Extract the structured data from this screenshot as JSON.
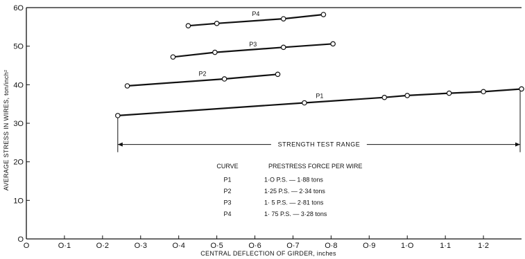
{
  "chart_data": {
    "type": "line",
    "xlabel": "CENTRAL DEFLECTION OF GIRDER, inches",
    "ylabel": "AVERAGE STRESS IN WIRES, ton/inch²",
    "xlim": [
      0,
      1.3
    ],
    "ylim": [
      0,
      60
    ],
    "x_ticks": [
      {
        "value": 0,
        "label": "O"
      },
      {
        "value": 0.1,
        "label": "O·1"
      },
      {
        "value": 0.2,
        "label": "O·2"
      },
      {
        "value": 0.3,
        "label": "O·3"
      },
      {
        "value": 0.4,
        "label": "O·4"
      },
      {
        "value": 0.5,
        "label": "O·5"
      },
      {
        "value": 0.6,
        "label": "O·6"
      },
      {
        "value": 0.7,
        "label": "O·7"
      },
      {
        "value": 0.8,
        "label": "O·8"
      },
      {
        "value": 0.9,
        "label": "O·9"
      },
      {
        "value": 1.0,
        "label": "1·O"
      },
      {
        "value": 1.1,
        "label": "1·1"
      },
      {
        "value": 1.2,
        "label": "1·2"
      }
    ],
    "y_ticks": [
      {
        "value": 0,
        "label": "O"
      },
      {
        "value": 10,
        "label": "1O"
      },
      {
        "value": 20,
        "label": "2O"
      },
      {
        "value": 30,
        "label": "3O"
      },
      {
        "value": 40,
        "label": "4O"
      },
      {
        "value": 50,
        "label": "5O"
      },
      {
        "value": 60,
        "label": "6O"
      }
    ],
    "grid": false,
    "series": [
      {
        "name": "P1",
        "points": [
          [
            0.24,
            32.0
          ],
          [
            0.73,
            35.3
          ],
          [
            0.94,
            36.7
          ],
          [
            1.0,
            37.2
          ],
          [
            1.11,
            37.8
          ],
          [
            1.2,
            38.2
          ],
          [
            1.3,
            38.9
          ]
        ]
      },
      {
        "name": "P2",
        "points": [
          [
            0.265,
            39.7
          ],
          [
            0.52,
            41.5
          ],
          [
            0.66,
            42.7
          ]
        ]
      },
      {
        "name": "P3",
        "points": [
          [
            0.385,
            47.2
          ],
          [
            0.495,
            48.4
          ],
          [
            0.675,
            49.7
          ],
          [
            0.805,
            50.6
          ]
        ]
      },
      {
        "name": "P4",
        "points": [
          [
            0.425,
            55.3
          ],
          [
            0.5,
            55.9
          ],
          [
            0.675,
            57.1
          ],
          [
            0.78,
            58.2
          ]
        ]
      }
    ],
    "annotations": {
      "range_label": "STRENGTH TEST RANGE",
      "range": [
        0.24,
        1.3
      ],
      "range_y": 24.5
    },
    "legend_table": {
      "headers": [
        "CURVE",
        "PRESTRESS FORCE PER WIRE"
      ],
      "rows": [
        [
          "P1",
          "1·O P.S. — 1·88 tons"
        ],
        [
          "P2",
          "1·25 P.S. — 2·34 tons"
        ],
        [
          "P3",
          "1· 5 P.S. — 2·81 tons"
        ],
        [
          "P4",
          "1· 75 P.S. — 3·28 tons"
        ]
      ]
    }
  }
}
